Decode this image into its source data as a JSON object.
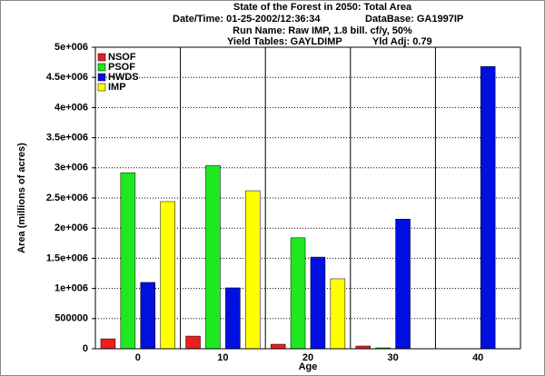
{
  "chart_data": {
    "type": "bar",
    "title": "State of the Forest in 2050: Total Area",
    "date_time": "Date/Time: 01-25-2002/12:36:34",
    "database": "DataBase: GA1997IP",
    "run_name": "Run Name: Raw IMP, 1.8 bill. cf/y, 50%",
    "yield_tables": "Yield Tables: GAYLDIMP",
    "yield_adj": "Yld Adj: 0.79",
    "x_label": "Age",
    "y_label": "Area (millions of acres)",
    "categories": [
      "0",
      "10",
      "20",
      "30",
      "40"
    ],
    "series": [
      {
        "name": "NSOF",
        "color": "#e82020",
        "values": [
          165000,
          210000,
          75000,
          45000,
          0
        ]
      },
      {
        "name": "PSOF",
        "color": "#20e820",
        "values": [
          2920000,
          3040000,
          1840000,
          15000,
          0
        ]
      },
      {
        "name": "HWDS",
        "color": "#0010e0",
        "values": [
          1100000,
          1010000,
          1520000,
          2150000,
          4680000
        ]
      },
      {
        "name": "IMP",
        "color": "#ffff00",
        "values": [
          2440000,
          2620000,
          1160000,
          0,
          0
        ]
      }
    ],
    "ylim": [
      0,
      5000000
    ],
    "yticks": [
      0,
      500000,
      {
        "value": 1000000,
        "label": "1e+006"
      },
      {
        "value": 1500000,
        "label": "1.5e+006"
      },
      {
        "value": 2000000,
        "label": "2e+006"
      },
      {
        "value": 2500000,
        "label": "2.5e+006"
      },
      {
        "value": 3000000,
        "label": "3e+006"
      },
      {
        "value": 3500000,
        "label": "3.5e+006"
      },
      {
        "value": 4000000,
        "label": "4e+006"
      },
      {
        "value": 4500000,
        "label": "4.5e+006"
      },
      {
        "value": 5000000,
        "label": "5e+006"
      }
    ],
    "grid": true,
    "legend": "top-left"
  }
}
